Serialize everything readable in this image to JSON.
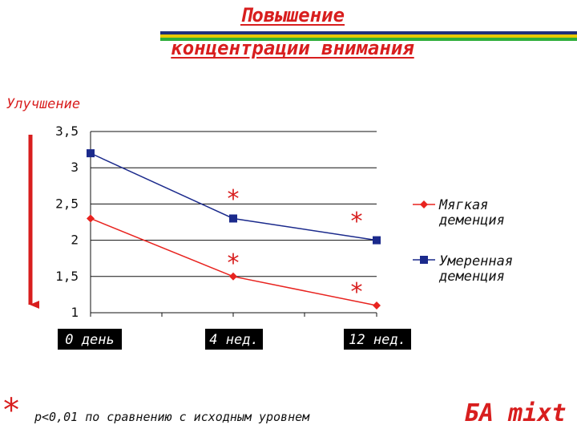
{
  "title_line1": "Повышение",
  "title_line2": "концентрации внимания",
  "ylabel": "Улучшение",
  "colors": {
    "title": "#d81e1e",
    "stripe_top": "#1e2f7a",
    "stripe_mid": "#e8c800",
    "stripe_bottom": "#2eae3a",
    "series_mild": "#e8231f",
    "series_moderate": "#1b2a8c"
  },
  "chart_data": {
    "type": "line",
    "categories": [
      "0 день",
      "4 нед.",
      "12 нед."
    ],
    "series": [
      {
        "name": "Мягкая деменция",
        "values": [
          2.3,
          1.5,
          1.1
        ],
        "marker": "diamond"
      },
      {
        "name": "Умеренная деменция",
        "values": [
          3.2,
          2.3,
          2.0
        ],
        "marker": "square"
      }
    ],
    "yticks": [
      "3,5",
      "3",
      "2,5",
      "2",
      "1,5",
      "1"
    ],
    "ylim": [
      1,
      3.5
    ],
    "ylabel": "Улучшение",
    "grid": true,
    "legend_position": "right",
    "significance_marks": [
      "*",
      "*",
      "*",
      "*"
    ]
  },
  "legend": {
    "mild_line1": "Мягкая",
    "mild_line2": "деменция",
    "moderate_line1": "Умеренная",
    "moderate_line2": "деменция"
  },
  "footnote": {
    "star": "*",
    "text": "p<0,01 по сравнению с исходным уровнем"
  },
  "brand": "БА mixt"
}
